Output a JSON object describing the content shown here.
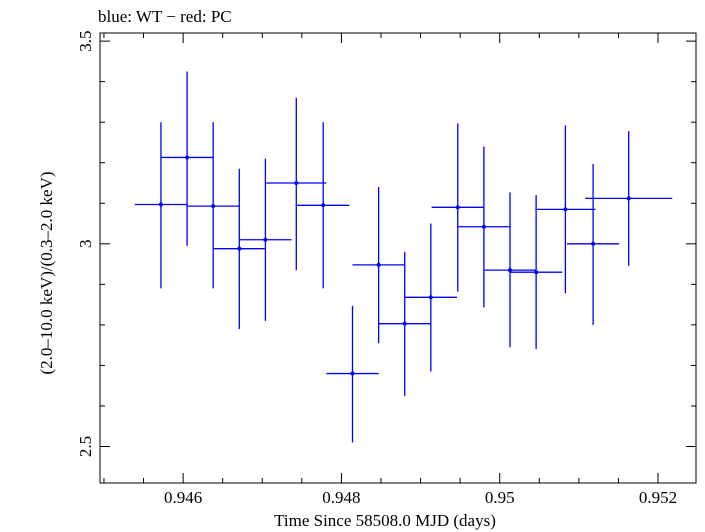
{
  "chart_data": {
    "type": "scatter",
    "title": "blue: WT − red: PC",
    "xlabel": "Time Since 58508.0 MJD (days)",
    "ylabel": "(2.0–10.0 keV)/(0.3–2.0 keV)",
    "xlim": [
      0.94495,
      0.95248
    ],
    "ylim": [
      2.41,
      3.52
    ],
    "xticks": [
      0.946,
      0.948,
      0.95,
      0.952
    ],
    "xtick_labels": [
      "0.946",
      "0.948",
      "0.95",
      "0.952"
    ],
    "yticks": [
      2.5,
      3.0,
      3.5
    ],
    "ytick_labels": [
      "2.5",
      "3",
      "3.5"
    ],
    "grid": false,
    "series": [
      {
        "name": "WT",
        "color": "#0000ff",
        "points": [
          {
            "x": 0.94572,
            "y": 3.097,
            "xerr": 0.00033,
            "ylo": 2.89,
            "yhi": 3.3
          },
          {
            "x": 0.94605,
            "y": 3.213,
            "xerr": 0.00033,
            "ylo": 2.995,
            "yhi": 3.425
          },
          {
            "x": 0.94638,
            "y": 3.093,
            "xerr": 0.00033,
            "ylo": 2.89,
            "yhi": 3.3
          },
          {
            "x": 0.94671,
            "y": 2.988,
            "xerr": 0.00033,
            "ylo": 2.79,
            "yhi": 3.185
          },
          {
            "x": 0.94704,
            "y": 3.01,
            "xerr": 0.00033,
            "ylo": 2.81,
            "yhi": 3.21
          },
          {
            "x": 0.94743,
            "y": 3.15,
            "xerr": 0.00038,
            "ylo": 2.935,
            "yhi": 3.36
          },
          {
            "x": 0.94777,
            "y": 3.095,
            "xerr": 0.00033,
            "ylo": 2.89,
            "yhi": 3.3
          },
          {
            "x": 0.94814,
            "y": 2.68,
            "xerr": 0.00033,
            "ylo": 2.51,
            "yhi": 2.847
          },
          {
            "x": 0.94847,
            "y": 2.948,
            "xerr": 0.00033,
            "ylo": 2.755,
            "yhi": 3.14
          },
          {
            "x": 0.9488,
            "y": 2.803,
            "xerr": 0.00033,
            "ylo": 2.625,
            "yhi": 2.98
          },
          {
            "x": 0.94913,
            "y": 2.868,
            "xerr": 0.00033,
            "ylo": 2.685,
            "yhi": 3.05
          },
          {
            "x": 0.94947,
            "y": 3.09,
            "xerr": 0.00033,
            "ylo": 2.882,
            "yhi": 3.297
          },
          {
            "x": 0.9498,
            "y": 3.042,
            "xerr": 0.00033,
            "ylo": 2.843,
            "yhi": 3.24
          },
          {
            "x": 0.95013,
            "y": 2.935,
            "xerr": 0.00033,
            "ylo": 2.745,
            "yhi": 3.127
          },
          {
            "x": 0.95046,
            "y": 2.93,
            "xerr": 0.00033,
            "ylo": 2.74,
            "yhi": 3.12
          },
          {
            "x": 0.95083,
            "y": 3.085,
            "xerr": 0.00038,
            "ylo": 2.878,
            "yhi": 3.292
          },
          {
            "x": 0.95118,
            "y": 3.0,
            "xerr": 0.00033,
            "ylo": 2.8,
            "yhi": 3.197
          },
          {
            "x": 0.95163,
            "y": 3.112,
            "xerr": 0.00055,
            "ylo": 2.946,
            "yhi": 3.278
          }
        ]
      }
    ]
  }
}
